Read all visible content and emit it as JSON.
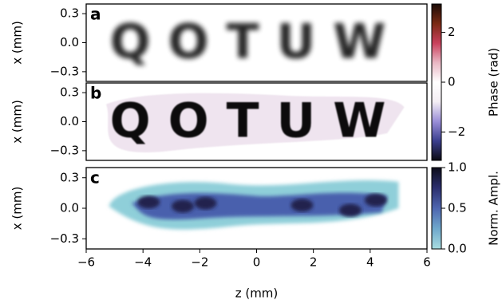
{
  "chart_data": [
    {
      "type": "heatmap",
      "panel_label": "a",
      "image_text": "QOTUW",
      "ylabel": "x (mm)",
      "xlim": [
        -6,
        6
      ],
      "ylim": [
        -0.4,
        0.4
      ],
      "yticks": [
        {
          "value": 0.3,
          "label": "0.3"
        },
        {
          "value": 0,
          "label": "0.0"
        },
        {
          "value": -0.3,
          "label": "−0.3"
        }
      ]
    },
    {
      "type": "heatmap",
      "panel_label": "b",
      "image_text": "QOTUW",
      "ylabel": "x (mm)",
      "xlim": [
        -6,
        6
      ],
      "ylim": [
        -0.4,
        0.4
      ],
      "yticks": [
        {
          "value": 0.3,
          "label": "0.3"
        },
        {
          "value": 0,
          "label": "0.0"
        },
        {
          "value": -0.3,
          "label": "−0.3"
        }
      ]
    },
    {
      "type": "heatmap",
      "panel_label": "c",
      "ylabel": "x (mm)",
      "xlabel": "z (mm)",
      "xlim": [
        -6,
        6
      ],
      "ylim": [
        -0.4,
        0.4
      ],
      "yticks": [
        {
          "value": 0.3,
          "label": "0.3"
        },
        {
          "value": 0,
          "label": "0.0"
        },
        {
          "value": -0.3,
          "label": "−0.3"
        }
      ],
      "xticks": [
        {
          "value": -6,
          "label": "−6"
        },
        {
          "value": -4,
          "label": "−4"
        },
        {
          "value": -2,
          "label": "−2"
        },
        0,
        2,
        4,
        6
      ]
    }
  ],
  "colorbars": [
    {
      "label": "Phase (rad)",
      "lim": [
        -3.14,
        3.14
      ],
      "ticks": [
        2,
        0,
        {
          "value": -2,
          "label": "−2"
        }
      ],
      "colors": [
        "#0b0b14",
        "#3b3f8f",
        "#9b8fd8",
        "#f4eef4",
        "#ffffff",
        "#e9b7c4",
        "#c9405c",
        "#7a2a14",
        "#1a0c06"
      ]
    },
    {
      "label": "Norm. Ampl.",
      "lim": [
        0,
        1
      ],
      "ticks": [
        {
          "value": 1,
          "label": "1.0"
        },
        0.5,
        {
          "value": 0,
          "label": "0.0"
        }
      ],
      "colors": [
        "#a8dde0",
        "#6fa8cc",
        "#4e66b0",
        "#2c2f6e",
        "#0d0d1a"
      ]
    }
  ]
}
